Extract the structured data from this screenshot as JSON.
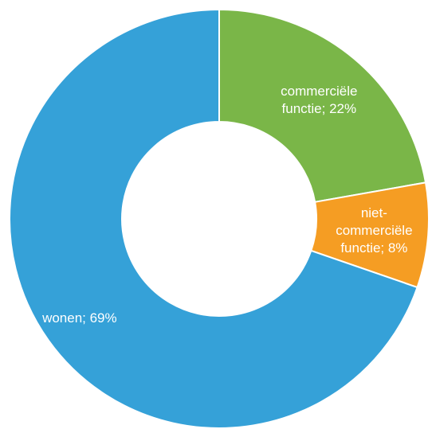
{
  "chart_data": {
    "type": "donut",
    "categories": [
      "commerciële functie",
      "niet-commerciële functie",
      "wonen"
    ],
    "values": [
      22,
      8,
      69
    ],
    "value_labels": [
      "commerciële functie; 22%",
      "niet-commerciële functie; 8%",
      "wonen; 69%"
    ],
    "colors": [
      "#7ab648",
      "#f59d23",
      "#35a1d8"
    ]
  }
}
